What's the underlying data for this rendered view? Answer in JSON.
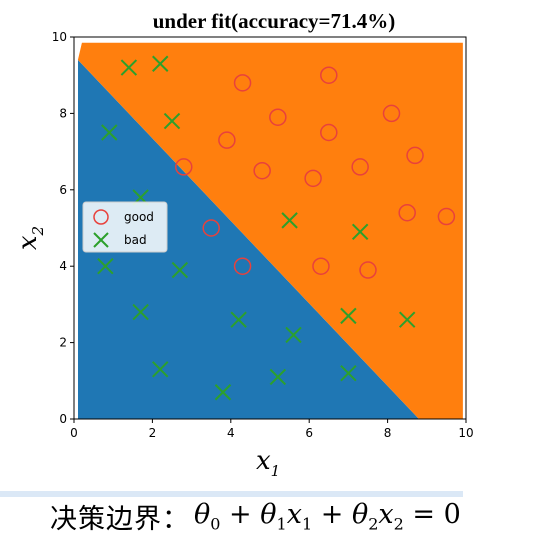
{
  "chart_data": {
    "type": "scatter",
    "title": "under fit(accuracy=71.4%)",
    "xlabel": "x",
    "xlabel_sub": "1",
    "ylabel": "x",
    "ylabel_sub": "2",
    "xlim": [
      0,
      10
    ],
    "ylim": [
      0,
      10
    ],
    "xticks": [
      "0",
      "2",
      "4",
      "6",
      "8",
      "10"
    ],
    "yticks": [
      "0",
      "2",
      "4",
      "6",
      "8",
      "10"
    ],
    "grid": false,
    "legend_position": "left",
    "decision_regions": {
      "boundary_line": [
        [
          0.1,
          9.4
        ],
        [
          8.8,
          0
        ]
      ],
      "below_color": "#1f77b4",
      "above_color": "#ff7f0e"
    },
    "series": [
      {
        "name": "good",
        "marker": "circle",
        "color": "#e8413c",
        "points": [
          [
            4.3,
            8.8
          ],
          [
            6.5,
            9.0
          ],
          [
            3.9,
            7.3
          ],
          [
            5.2,
            7.9
          ],
          [
            6.5,
            7.5
          ],
          [
            8.1,
            8.0
          ],
          [
            8.7,
            6.9
          ],
          [
            2.8,
            6.6
          ],
          [
            4.8,
            6.5
          ],
          [
            6.1,
            6.3
          ],
          [
            7.3,
            6.6
          ],
          [
            8.5,
            5.4
          ],
          [
            9.5,
            5.3
          ],
          [
            3.5,
            5.0
          ],
          [
            4.3,
            4.0
          ],
          [
            6.3,
            4.0
          ],
          [
            7.5,
            3.9
          ]
        ]
      },
      {
        "name": "bad",
        "marker": "x",
        "color": "#2ca02c",
        "points": [
          [
            1.4,
            9.2
          ],
          [
            2.2,
            9.3
          ],
          [
            0.9,
            7.5
          ],
          [
            2.5,
            7.8
          ],
          [
            1.7,
            5.8
          ],
          [
            5.5,
            5.2
          ],
          [
            7.3,
            4.9
          ],
          [
            0.8,
            4.0
          ],
          [
            2.7,
            3.9
          ],
          [
            1.7,
            2.8
          ],
          [
            4.2,
            2.6
          ],
          [
            5.6,
            2.2
          ],
          [
            7.0,
            2.7
          ],
          [
            8.5,
            2.6
          ],
          [
            2.2,
            1.3
          ],
          [
            3.8,
            0.7
          ],
          [
            5.2,
            1.1
          ],
          [
            7.0,
            1.2
          ]
        ]
      }
    ]
  },
  "caption": {
    "label": "决策边界：",
    "equation": {
      "theta": "θ",
      "x": "x",
      "s0": "0",
      "s1": "1",
      "s2": "2",
      "plus": "+",
      "equals": "=",
      "zero": "0"
    }
  }
}
